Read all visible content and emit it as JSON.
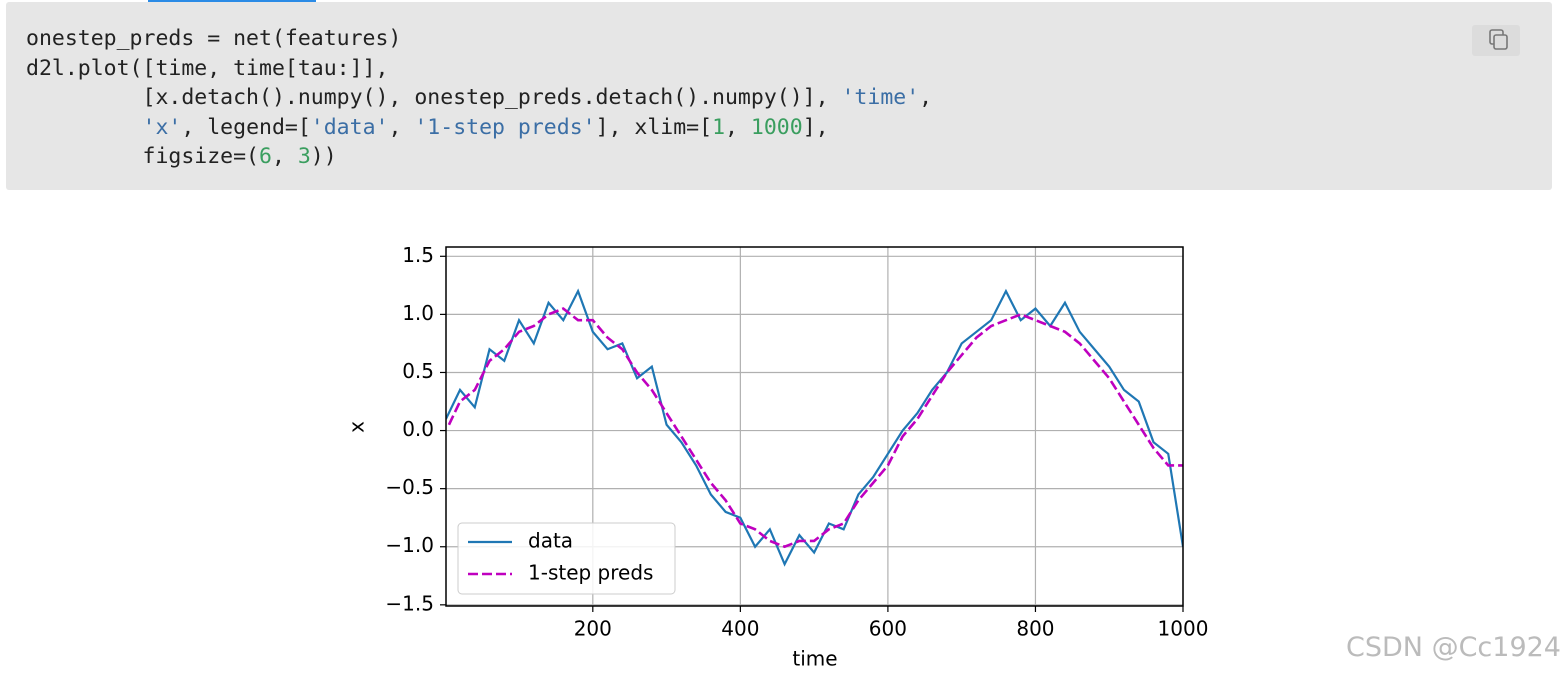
{
  "code": {
    "lines": [
      [
        {
          "text": "onestep_preds = net(features)",
          "kind": "plain"
        }
      ],
      [
        {
          "text": "d2l.plot([time, time[tau:]],",
          "kind": "plain"
        }
      ],
      [
        {
          "text": "         [x.detach().numpy(), onestep_preds.detach().numpy()], ",
          "kind": "plain"
        },
        {
          "text": "'time'",
          "kind": "str"
        },
        {
          "text": ",",
          "kind": "plain"
        }
      ],
      [
        {
          "text": "         ",
          "kind": "plain"
        },
        {
          "text": "'x'",
          "kind": "str"
        },
        {
          "text": ", legend=[",
          "kind": "plain"
        },
        {
          "text": "'data'",
          "kind": "str"
        },
        {
          "text": ", ",
          "kind": "plain"
        },
        {
          "text": "'1-step preds'",
          "kind": "str"
        },
        {
          "text": "], xlim=[",
          "kind": "plain"
        },
        {
          "text": "1",
          "kind": "num"
        },
        {
          "text": ", ",
          "kind": "plain"
        },
        {
          "text": "1000",
          "kind": "num"
        },
        {
          "text": "],",
          "kind": "plain"
        }
      ],
      [
        {
          "text": "         figsize=(",
          "kind": "plain"
        },
        {
          "text": "6",
          "kind": "num"
        },
        {
          "text": ", ",
          "kind": "plain"
        },
        {
          "text": "3",
          "kind": "num"
        },
        {
          "text": "))",
          "kind": "plain"
        }
      ]
    ]
  },
  "watermark": "CSDN @Cc1924",
  "chart_data": {
    "type": "line",
    "xlabel": "time",
    "ylabel": "x",
    "xlim": [
      1,
      1000
    ],
    "ylim": [
      -1.51,
      1.58
    ],
    "xticks": [
      200,
      400,
      600,
      800,
      1000
    ],
    "yticks": [
      {
        "value": -1.5,
        "label": "−1.5"
      },
      {
        "value": -1,
        "label": "−1.0"
      },
      {
        "value": -0.5,
        "label": "−0.5"
      },
      {
        "value": 0,
        "label": "0.0"
      },
      0.5,
      {
        "value": 1,
        "label": "1.0"
      },
      1.5
    ],
    "grid": true,
    "legend_position": "lower left",
    "series": [
      {
        "name": "data",
        "color": "#1f77b4",
        "style": "solid",
        "x": [
          1,
          20,
          40,
          60,
          80,
          100,
          120,
          140,
          160,
          180,
          200,
          220,
          240,
          260,
          280,
          300,
          320,
          340,
          360,
          380,
          400,
          420,
          440,
          460,
          480,
          500,
          520,
          540,
          560,
          580,
          600,
          620,
          640,
          660,
          680,
          700,
          720,
          740,
          760,
          780,
          800,
          820,
          840,
          860,
          880,
          900,
          920,
          940,
          960,
          980,
          1000
        ],
        "values": [
          0.1,
          0.35,
          0.2,
          0.7,
          0.6,
          0.95,
          0.75,
          1.1,
          0.95,
          1.2,
          0.85,
          0.7,
          0.75,
          0.45,
          0.55,
          0.05,
          -0.1,
          -0.3,
          -0.55,
          -0.7,
          -0.75,
          -1.0,
          -0.85,
          -1.15,
          -0.9,
          -1.05,
          -0.8,
          -0.85,
          -0.55,
          -0.4,
          -0.2,
          0.0,
          0.15,
          0.35,
          0.5,
          0.75,
          0.85,
          0.95,
          1.2,
          0.95,
          1.05,
          0.9,
          1.1,
          0.85,
          0.7,
          0.55,
          0.35,
          0.25,
          -0.1,
          -0.2,
          -1.0
        ]
      },
      {
        "name": "1-step preds",
        "color": "#bf00bf",
        "style": "dashed",
        "x": [
          5,
          20,
          40,
          60,
          80,
          100,
          120,
          140,
          160,
          180,
          200,
          220,
          240,
          260,
          280,
          300,
          320,
          340,
          360,
          380,
          400,
          420,
          440,
          460,
          480,
          500,
          520,
          540,
          560,
          580,
          600,
          620,
          640,
          660,
          680,
          700,
          720,
          740,
          760,
          780,
          800,
          820,
          840,
          860,
          880,
          900,
          920,
          940,
          960,
          980,
          1000
        ],
        "values": [
          0.05,
          0.25,
          0.35,
          0.6,
          0.7,
          0.85,
          0.9,
          1.0,
          1.05,
          0.95,
          0.95,
          0.8,
          0.7,
          0.5,
          0.35,
          0.15,
          -0.05,
          -0.25,
          -0.45,
          -0.6,
          -0.8,
          -0.85,
          -0.95,
          -1.0,
          -0.95,
          -0.95,
          -0.85,
          -0.8,
          -0.6,
          -0.45,
          -0.3,
          -0.05,
          0.1,
          0.3,
          0.5,
          0.65,
          0.8,
          0.9,
          0.95,
          1.0,
          0.95,
          0.9,
          0.85,
          0.75,
          0.6,
          0.45,
          0.25,
          0.05,
          -0.15,
          -0.3,
          -0.3
        ]
      }
    ]
  }
}
